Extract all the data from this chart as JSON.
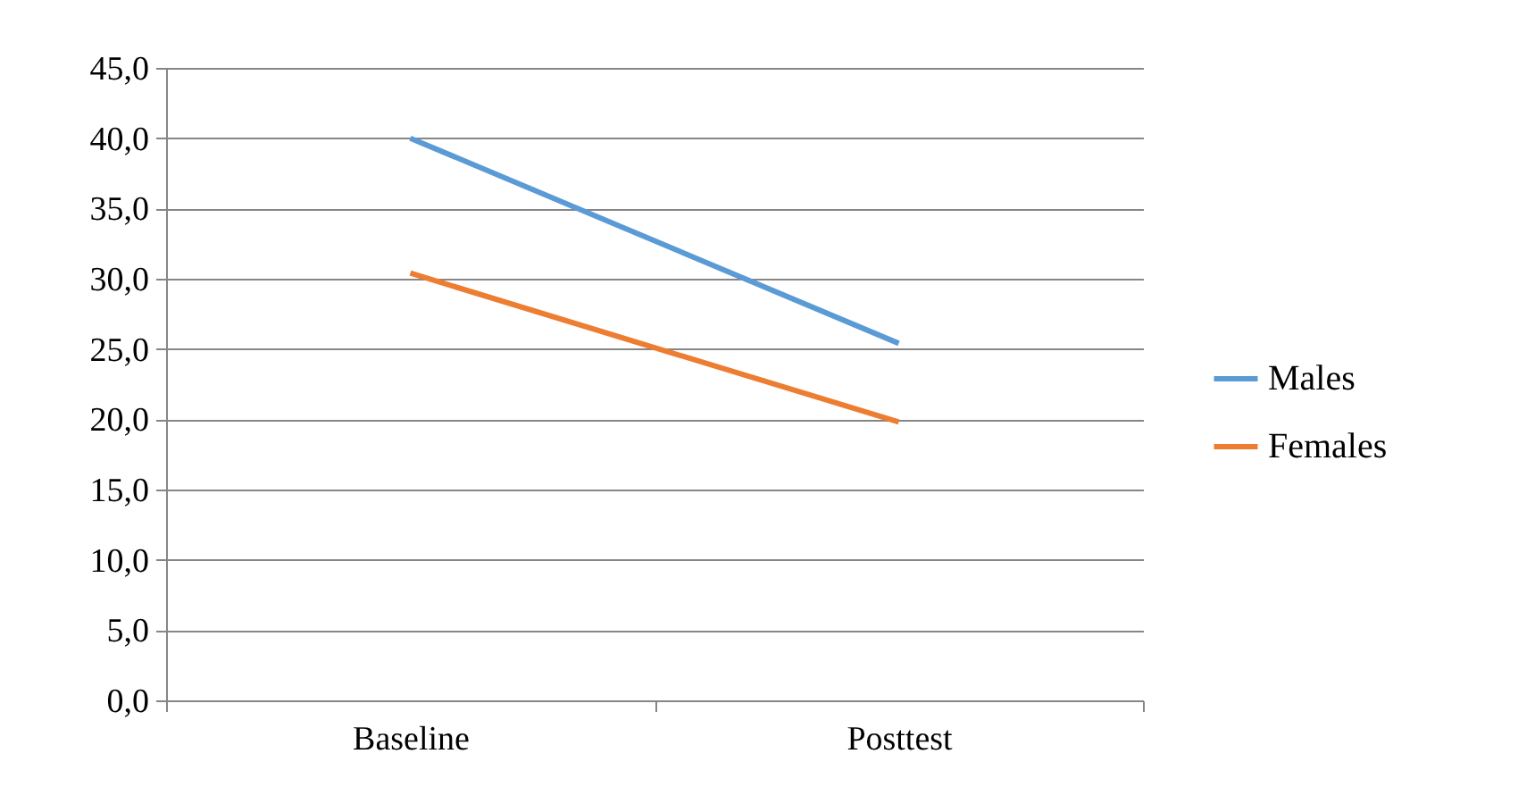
{
  "chart_data": {
    "type": "line",
    "categories": [
      "Baseline",
      "Posttest"
    ],
    "series": [
      {
        "name": "Males",
        "color": "#5b9bd5",
        "values": [
          40.0,
          25.4
        ]
      },
      {
        "name": "Females",
        "color": "#ed7d31",
        "values": [
          30.4,
          19.8
        ]
      }
    ],
    "ylim": [
      0,
      45
    ],
    "yticks": [
      {
        "value": 0,
        "label": "0,0"
      },
      {
        "value": 5,
        "label": "5,0"
      },
      {
        "value": 10,
        "label": "10,0"
      },
      {
        "value": 15,
        "label": "15,0"
      },
      {
        "value": 20,
        "label": "20,0"
      },
      {
        "value": 25,
        "label": "25,0"
      },
      {
        "value": 30,
        "label": "30,0"
      },
      {
        "value": 35,
        "label": "35,0"
      },
      {
        "value": 40,
        "label": "40,0"
      },
      {
        "value": 45,
        "label": "45,0"
      }
    ],
    "grid": "y",
    "legend": "right",
    "marker": "none",
    "line_style": "solid"
  }
}
